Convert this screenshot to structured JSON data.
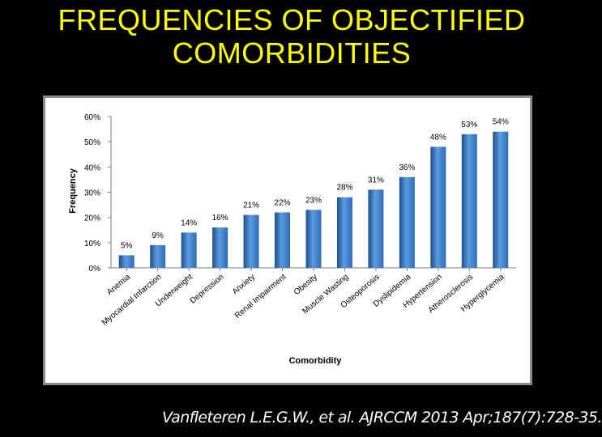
{
  "slide": {
    "title_line1": "FREQUENCIES OF OBJECTIFIED",
    "title_line2": "COMORBIDITIES",
    "citation": "Vanfleteren L.E.G.W., et al. AJRCCM 2013 Apr;187(7):728-35."
  },
  "colors": {
    "background": "#000000",
    "title": "#FFFF00",
    "bar": "#2E6DB6",
    "bar_light": "#5B9BE0",
    "bar_dark": "#1D4E8A"
  },
  "chart_data": {
    "type": "bar",
    "title": "",
    "xlabel": "Comorbidity",
    "ylabel": "Frequency",
    "ylim": [
      0,
      60
    ],
    "y_ticks": [
      "0%",
      "10%",
      "20%",
      "30%",
      "40%",
      "50%",
      "60%"
    ],
    "grid": false,
    "categories": [
      "Anemia",
      "Myocardial Infarction",
      "Underweight",
      "Depression",
      "Anxiety",
      "Renal Impairment",
      "Obesity",
      "Muscle Wasting",
      "Osteoporosis",
      "Dyslipidemia",
      "Hypertension",
      "Atherosclerosis",
      "Hyperglycemia"
    ],
    "values": [
      5,
      9,
      14,
      16,
      21,
      22,
      23,
      28,
      31,
      36,
      48,
      53,
      54
    ],
    "data_labels": [
      "5%",
      "9%",
      "14%",
      "16%",
      "21%",
      "22%",
      "23%",
      "28%",
      "31%",
      "36%",
      "48%",
      "53%",
      "54%"
    ]
  }
}
